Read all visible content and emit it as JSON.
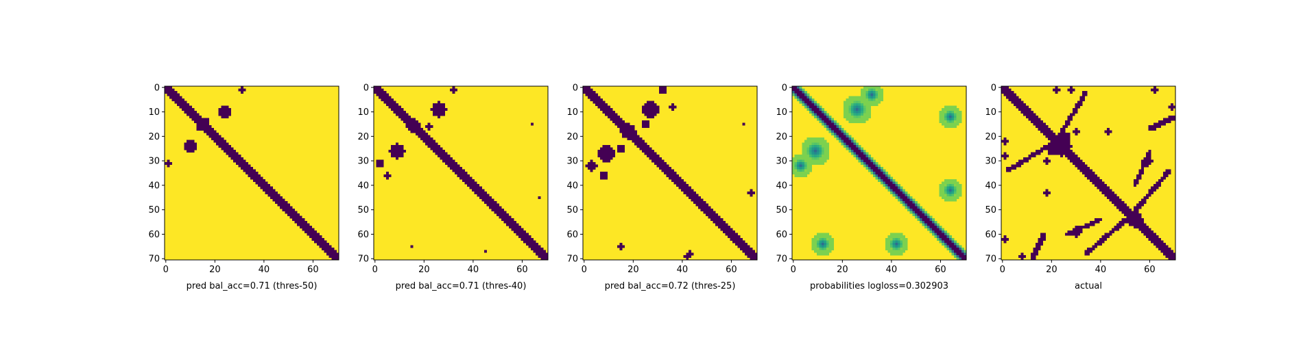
{
  "chart_data": [
    {
      "type": "heatmap",
      "xlabel": "pred bal_acc=0.71 (thres-50)",
      "size": 71,
      "xticks": [
        0,
        20,
        40,
        60
      ],
      "yticks": [
        0,
        10,
        20,
        30,
        40,
        50,
        60,
        70
      ],
      "colormap": "binary viridis (0 = #440154, 1 = #fde725)",
      "band_halfwidth": 2,
      "blobs": [
        {
          "x": 31,
          "y": 1,
          "r": 1.0
        },
        {
          "x": 24,
          "y": 10,
          "r": 2.5
        },
        {
          "x": 10,
          "y": 24,
          "r": 2.5
        },
        {
          "x": 1,
          "y": 31,
          "r": 1.0
        },
        {
          "x": 14,
          "y": 16,
          "r": 1.5
        },
        {
          "x": 16,
          "y": 14,
          "r": 1.5
        }
      ]
    },
    {
      "type": "heatmap",
      "xlabel": "pred bal_acc=0.71 (thres-40)",
      "size": 71,
      "xticks": [
        0,
        20,
        40,
        60
      ],
      "yticks": [
        0,
        10,
        20,
        30,
        40,
        50,
        60,
        70
      ],
      "colormap": "binary viridis (0 = #440154, 1 = #fde725)",
      "band_halfwidth": 2,
      "blobs": [
        {
          "x": 32,
          "y": 1,
          "r": 1.2
        },
        {
          "x": 26,
          "y": 9,
          "r": 3.0
        },
        {
          "x": 9,
          "y": 26,
          "r": 3.0
        },
        {
          "x": 2,
          "y": 31,
          "r": 1.5
        },
        {
          "x": 15,
          "y": 16,
          "r": 2.0
        },
        {
          "x": 16,
          "y": 15,
          "r": 2.0
        },
        {
          "x": 22,
          "y": 16,
          "r": 1.0
        },
        {
          "x": 5,
          "y": 36,
          "r": 1.0
        },
        {
          "x": 67,
          "y": 45,
          "r": 0.8
        },
        {
          "x": 45,
          "y": 67,
          "r": 0.8
        },
        {
          "x": 15,
          "y": 65,
          "r": 0.6
        },
        {
          "x": 64,
          "y": 15,
          "r": 0.6
        }
      ]
    },
    {
      "type": "heatmap",
      "xlabel": "pred bal_acc=0.72 (thres-25)",
      "size": 71,
      "xticks": [
        0,
        20,
        40,
        60
      ],
      "yticks": [
        0,
        10,
        20,
        30,
        40,
        50,
        60,
        70
      ],
      "colormap": "binary viridis (0 = #440154, 1 = #fde725)",
      "band_halfwidth": 2,
      "blobs": [
        {
          "x": 32,
          "y": 1,
          "r": 1.5
        },
        {
          "x": 27,
          "y": 9,
          "r": 3.5
        },
        {
          "x": 9,
          "y": 27,
          "r": 3.5
        },
        {
          "x": 3,
          "y": 32,
          "r": 2.0
        },
        {
          "x": 18,
          "y": 18,
          "r": 3.0
        },
        {
          "x": 25,
          "y": 15,
          "r": 1.5
        },
        {
          "x": 15,
          "y": 25,
          "r": 1.5
        },
        {
          "x": 68,
          "y": 43,
          "r": 1.2
        },
        {
          "x": 43,
          "y": 68,
          "r": 1.2
        },
        {
          "x": 15,
          "y": 65,
          "r": 1.0
        },
        {
          "x": 65,
          "y": 15,
          "r": 0.8
        },
        {
          "x": 42,
          "y": 69,
          "r": 1.0
        },
        {
          "x": 8,
          "y": 36,
          "r": 1.5
        },
        {
          "x": 36,
          "y": 8,
          "r": 1.2
        }
      ]
    },
    {
      "type": "heatmap",
      "xlabel": "probabilities logloss=0.302903",
      "size": 71,
      "xticks": [
        0,
        20,
        40,
        60
      ],
      "yticks": [
        0,
        10,
        20,
        30,
        40,
        50,
        60,
        70
      ],
      "colormap": "viridis probability (low = #440154, high = #fde725)",
      "band_halfwidth": 2,
      "blobs": [
        {
          "x": 32,
          "y": 3,
          "r": 3.0
        },
        {
          "x": 26,
          "y": 9,
          "r": 4.0
        },
        {
          "x": 9,
          "y": 26,
          "r": 4.0
        },
        {
          "x": 3,
          "y": 32,
          "r": 3.0
        },
        {
          "x": 12,
          "y": 64,
          "r": 3.0
        },
        {
          "x": 64,
          "y": 12,
          "r": 3.0
        },
        {
          "x": 42,
          "y": 64,
          "r": 3.0
        },
        {
          "x": 64,
          "y": 42,
          "r": 3.0
        }
      ]
    },
    {
      "type": "heatmap",
      "xlabel": "actual",
      "size": 71,
      "xticks": [
        0,
        20,
        40,
        60
      ],
      "yticks": [
        0,
        10,
        20,
        30,
        40,
        50,
        60,
        70
      ],
      "colormap": "binary viridis (0 = #440154, 1 = #fde725)",
      "band_halfwidth": 2,
      "blobs": [
        {
          "x": 24,
          "y": 24,
          "r": 4.0
        },
        {
          "x": 54,
          "y": 54,
          "r": 3.0
        },
        {
          "x": 22,
          "y": 1,
          "r": 1.0
        },
        {
          "x": 28,
          "y": 1,
          "r": 1.0
        },
        {
          "x": 62,
          "y": 1,
          "r": 1.0
        },
        {
          "x": 1,
          "y": 22,
          "r": 1.0
        },
        {
          "x": 1,
          "y": 28,
          "r": 1.0
        },
        {
          "x": 1,
          "y": 62,
          "r": 1.0
        },
        {
          "x": 30,
          "y": 18,
          "r": 1.2
        },
        {
          "x": 18,
          "y": 30,
          "r": 1.2
        },
        {
          "x": 43,
          "y": 18,
          "r": 1.2
        },
        {
          "x": 18,
          "y": 43,
          "r": 1.2
        },
        {
          "x": 20,
          "y": 26,
          "r": 1.5
        },
        {
          "x": 26,
          "y": 20,
          "r": 1.5
        },
        {
          "x": 69,
          "y": 8,
          "r": 1.0
        },
        {
          "x": 8,
          "y": 69,
          "r": 1.0
        },
        {
          "x": 30,
          "y": 59,
          "r": 2.0
        },
        {
          "x": 59,
          "y": 30,
          "r": 2.0
        }
      ],
      "lines": [
        {
          "x1": 2,
          "y1": 34,
          "x2": 25,
          "y2": 20
        },
        {
          "x1": 20,
          "y1": 25,
          "x2": 34,
          "y2": 2
        },
        {
          "x1": 50,
          "y1": 55,
          "x2": 68,
          "y2": 34
        },
        {
          "x1": 34,
          "y1": 68,
          "x2": 55,
          "y2": 50
        },
        {
          "x1": 26,
          "y1": 60,
          "x2": 40,
          "y2": 54
        },
        {
          "x1": 60,
          "y1": 26,
          "x2": 54,
          "y2": 40
        },
        {
          "x1": 60,
          "y1": 17,
          "x2": 70,
          "y2": 12
        },
        {
          "x1": 17,
          "y1": 60,
          "x2": 12,
          "y2": 70
        }
      ]
    }
  ]
}
